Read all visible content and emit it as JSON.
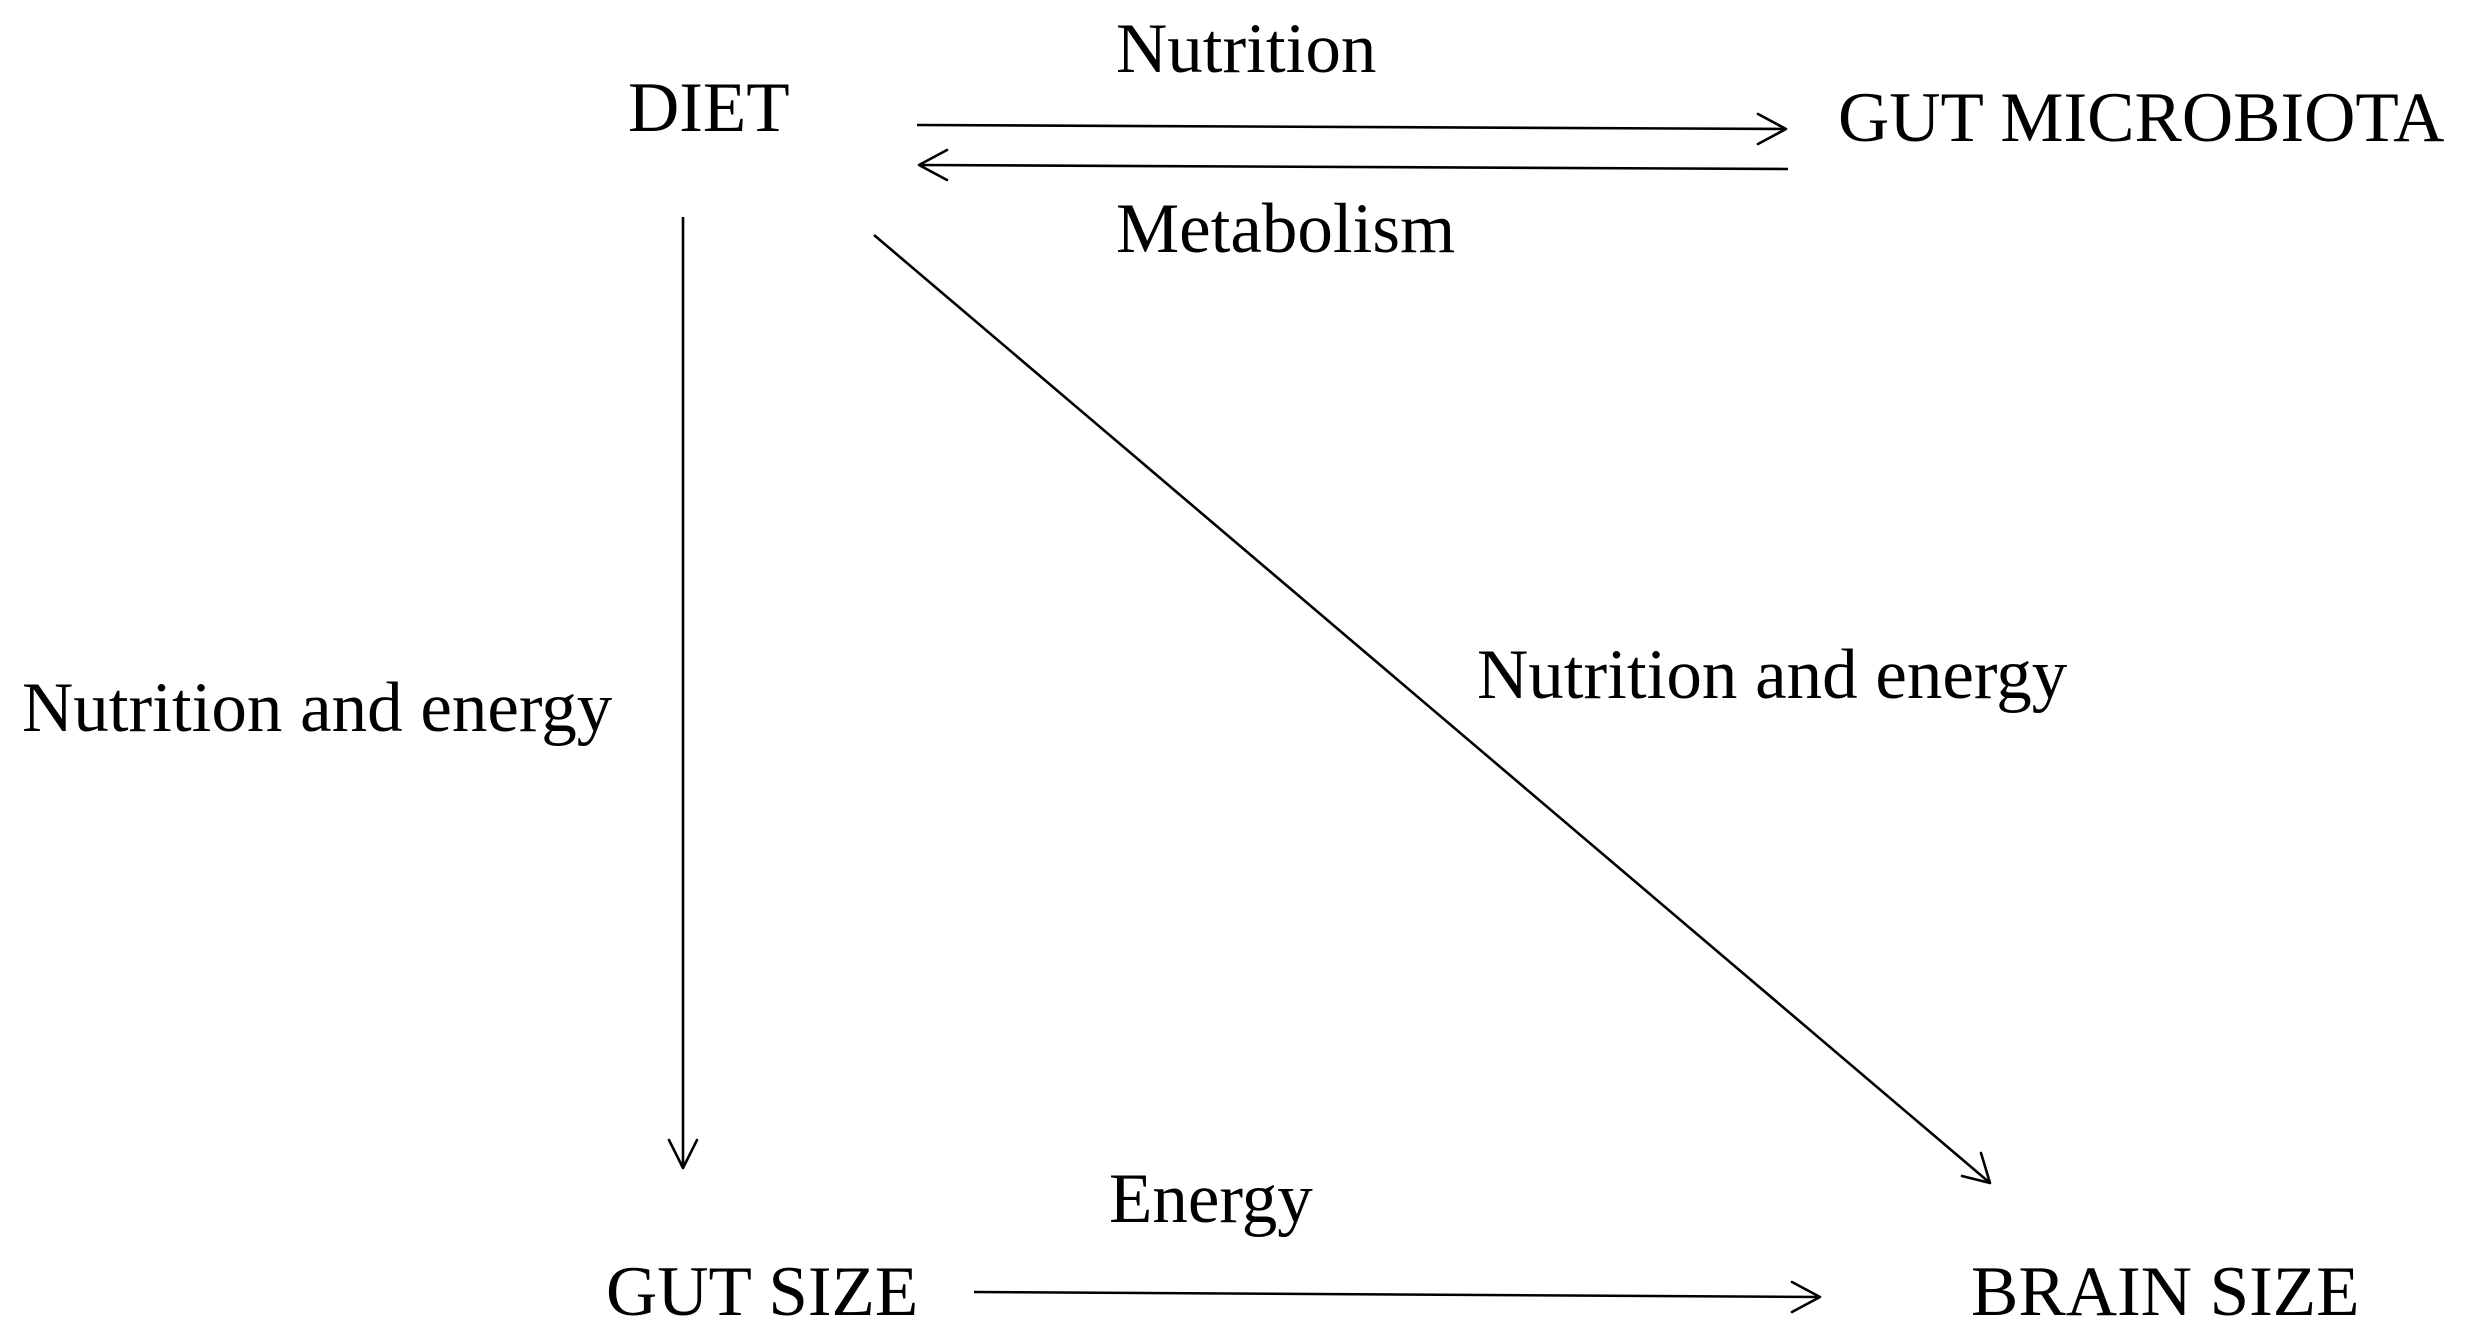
{
  "nodes": {
    "diet": "DIET",
    "gut_microbiota": "GUT MICROBIOTA",
    "gut_size": "GUT SIZE",
    "brain_size": "BRAIN SIZE"
  },
  "edges": {
    "diet_to_microbiota": "Nutrition",
    "microbiota_to_diet": "Metabolism",
    "diet_to_gut_size": "Nutrition and energy",
    "diet_to_brain_size": "Nutrition and energy",
    "gut_size_to_brain_size": "Energy"
  }
}
